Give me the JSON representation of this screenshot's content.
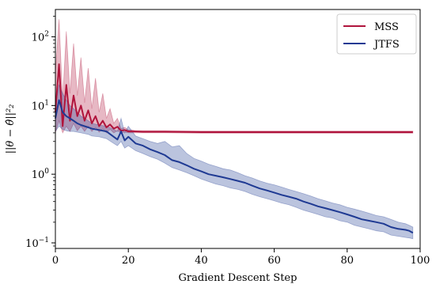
{
  "chart_data": {
    "type": "line",
    "title": "",
    "xlabel": "Gradient Descent Step",
    "ylabel": "||θ − θ̂||²₂",
    "xlim": [
      0,
      100
    ],
    "ylim": [
      0.083,
      250
    ],
    "yscale": "log",
    "x_ticks": [
      0,
      20,
      40,
      60,
      80,
      100
    ],
    "y_ticks": [
      {
        "value": 100,
        "base": "10",
        "exp": "2"
      },
      {
        "value": 10,
        "base": "10",
        "exp": "1"
      },
      {
        "value": 1,
        "base": "10",
        "exp": "0"
      },
      {
        "value": 0.1,
        "base": "10",
        "exp": "−1"
      }
    ],
    "grid": false,
    "legend_position": "top-right",
    "series": [
      {
        "name": "MSS",
        "color": "#b0143c",
        "x": [
          0,
          1,
          2,
          3,
          4,
          5,
          6,
          7,
          8,
          9,
          10,
          11,
          12,
          13,
          14,
          15,
          16,
          17,
          18,
          19,
          20,
          21,
          22,
          24,
          26,
          30,
          40,
          50,
          60,
          70,
          80,
          90,
          98
        ],
        "y": [
          8,
          40,
          5,
          20,
          6,
          14,
          7,
          10,
          6,
          8.5,
          5.5,
          7,
          5,
          6,
          4.8,
          5.3,
          4.6,
          4.9,
          4.3,
          4.4,
          4.2,
          4.2,
          4.2,
          4.15,
          4.15,
          4.15,
          4.1,
          4.1,
          4.1,
          4.1,
          4.1,
          4.1,
          4.1
        ],
        "upper": [
          30,
          180,
          12,
          120,
          15,
          80,
          14,
          50,
          11,
          35,
          9,
          25,
          8,
          15,
          6.5,
          9,
          5.5,
          6.5,
          4.6,
          4.8,
          4.4,
          4.4,
          4.3,
          4.3,
          4.3,
          4.3,
          4.25,
          4.25,
          4.25,
          4.25,
          4.25,
          4.25,
          4.25
        ],
        "lower": [
          4,
          6,
          4,
          5,
          4.2,
          5.5,
          4.3,
          5,
          4.2,
          5,
          4.2,
          4.8,
          4.1,
          4.6,
          4,
          4.5,
          4,
          4.3,
          4,
          4.1,
          4,
          4,
          4,
          4,
          4,
          4,
          3.95,
          3.95,
          3.95,
          3.95,
          3.95,
          3.95,
          3.95
        ]
      },
      {
        "name": "JTFS",
        "color": "#1f3a93",
        "x": [
          0,
          1,
          2,
          3,
          4,
          5,
          6,
          7,
          8,
          9,
          10,
          12,
          14,
          16,
          17,
          18,
          19,
          20,
          22,
          24,
          26,
          28,
          30,
          32,
          34,
          36,
          38,
          40,
          42,
          44,
          46,
          48,
          50,
          52,
          54,
          56,
          58,
          60,
          62,
          64,
          66,
          68,
          70,
          72,
          74,
          76,
          78,
          80,
          82,
          84,
          86,
          88,
          90,
          92,
          94,
          96,
          97,
          98
        ],
        "y": [
          6.5,
          12,
          8,
          7,
          6.5,
          6,
          5.5,
          5.2,
          5,
          4.8,
          4.6,
          4.4,
          4.2,
          3.5,
          3.2,
          4.2,
          3.1,
          3.5,
          2.8,
          2.6,
          2.3,
          2.1,
          1.9,
          1.6,
          1.5,
          1.35,
          1.2,
          1.1,
          1.0,
          0.95,
          0.9,
          0.85,
          0.8,
          0.75,
          0.68,
          0.62,
          0.58,
          0.54,
          0.5,
          0.47,
          0.44,
          0.4,
          0.37,
          0.34,
          0.32,
          0.3,
          0.28,
          0.26,
          0.24,
          0.22,
          0.21,
          0.2,
          0.19,
          0.17,
          0.16,
          0.155,
          0.15,
          0.14
        ],
        "upper": [
          10,
          20,
          15,
          12,
          10,
          9,
          8,
          7,
          6.5,
          6,
          5.5,
          5.2,
          5,
          4.5,
          4.2,
          6.5,
          4,
          5,
          3.6,
          3.3,
          3,
          2.8,
          3.0,
          2.5,
          2.6,
          2.0,
          1.7,
          1.55,
          1.4,
          1.3,
          1.2,
          1.15,
          1.05,
          0.95,
          0.88,
          0.8,
          0.74,
          0.7,
          0.65,
          0.6,
          0.56,
          0.52,
          0.48,
          0.44,
          0.41,
          0.38,
          0.36,
          0.33,
          0.31,
          0.29,
          0.27,
          0.25,
          0.24,
          0.22,
          0.2,
          0.19,
          0.18,
          0.17
        ],
        "lower": [
          4.2,
          5,
          4.5,
          4.3,
          4.2,
          4.2,
          4.1,
          4.0,
          3.9,
          3.8,
          3.6,
          3.5,
          3.3,
          2.8,
          2.6,
          3.0,
          2.4,
          2.6,
          2.2,
          2.0,
          1.8,
          1.65,
          1.45,
          1.25,
          1.15,
          1.05,
          0.95,
          0.85,
          0.78,
          0.72,
          0.68,
          0.63,
          0.6,
          0.56,
          0.51,
          0.47,
          0.44,
          0.41,
          0.38,
          0.36,
          0.33,
          0.3,
          0.28,
          0.26,
          0.24,
          0.23,
          0.21,
          0.2,
          0.18,
          0.17,
          0.16,
          0.15,
          0.145,
          0.13,
          0.125,
          0.12,
          0.118,
          0.115
        ]
      }
    ]
  }
}
